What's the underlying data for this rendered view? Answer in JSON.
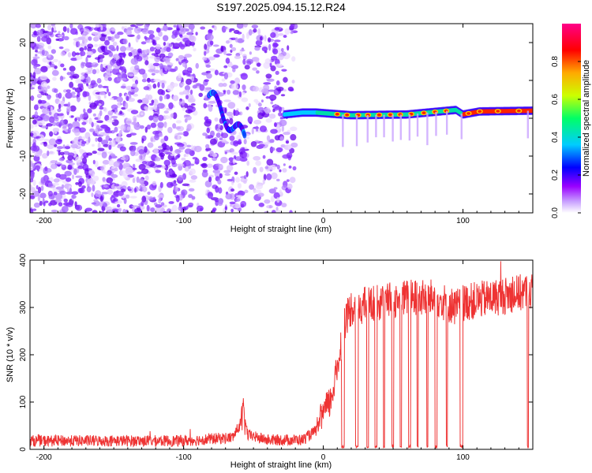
{
  "title": "S197.2025.094.15.12.R24",
  "chart_data": [
    {
      "type": "heatmap",
      "xlabel": "Height of straight line (km)",
      "ylabel": "Frequency (Hz)",
      "xlim": [
        -210,
        150
      ],
      "ylim": [
        -25,
        25
      ],
      "xticks": [
        -200,
        -100,
        0,
        100
      ],
      "yticks": [
        -20,
        -10,
        0,
        10,
        20
      ],
      "grid": false,
      "noise_region_x": [
        -210,
        -20
      ],
      "carrier_start_x": -28,
      "carrier_line": [
        [
          -28,
          1
        ],
        [
          -15,
          1.5
        ],
        [
          -5,
          1.5
        ],
        [
          20,
          0.8
        ],
        [
          60,
          1
        ],
        [
          95,
          2.2
        ],
        [
          100,
          1
        ],
        [
          112,
          1.8
        ],
        [
          150,
          2
        ]
      ],
      "colorbar": {
        "label": "Normalized spectral amplitude",
        "range": [
          0,
          1
        ],
        "ticks": [
          "0.0",
          "0.2",
          "0.4",
          "0.6",
          "0.8"
        ],
        "colors": [
          "#ffffff",
          "#9a00ff",
          "#0000ff",
          "#00ccff",
          "#00ff66",
          "#ccff00",
          "#ffaa00",
          "#ff0000",
          "#ff0088"
        ]
      }
    },
    {
      "type": "line",
      "xlabel": "Height of straight line (km)",
      "ylabel": "SNR (10 * v/v)",
      "xlim": [
        -210,
        150
      ],
      "ylim": [
        0,
        400
      ],
      "xticks": [
        -200,
        -100,
        0,
        100
      ],
      "yticks": [
        0,
        100,
        200,
        300,
        400
      ],
      "grid": false,
      "series_color": "#ee3333",
      "envelope": [
        [
          -210,
          18
        ],
        [
          -100,
          18
        ],
        [
          -65,
          25
        ],
        [
          -60,
          50
        ],
        [
          -57,
          75
        ],
        [
          -54,
          30
        ],
        [
          -40,
          20
        ],
        [
          -15,
          20
        ],
        [
          -5,
          40
        ],
        [
          0,
          75
        ],
        [
          5,
          100
        ],
        [
          10,
          170
        ],
        [
          15,
          270
        ],
        [
          20,
          300
        ],
        [
          40,
          310
        ],
        [
          60,
          320
        ],
        [
          80,
          320
        ],
        [
          95,
          300
        ],
        [
          100,
          310
        ],
        [
          120,
          320
        ],
        [
          150,
          335
        ]
      ],
      "dropouts": [
        [
          13,
          15
        ],
        [
          23,
          25
        ],
        [
          31,
          32.5
        ],
        [
          37,
          38.5
        ],
        [
          43,
          44
        ],
        [
          49,
          50.5
        ],
        [
          55,
          56
        ],
        [
          61,
          62.5
        ],
        [
          67,
          68
        ],
        [
          74,
          75
        ],
        [
          80,
          81.5
        ],
        [
          88,
          89
        ],
        [
          98,
          100
        ],
        [
          146,
          147
        ]
      ]
    }
  ]
}
